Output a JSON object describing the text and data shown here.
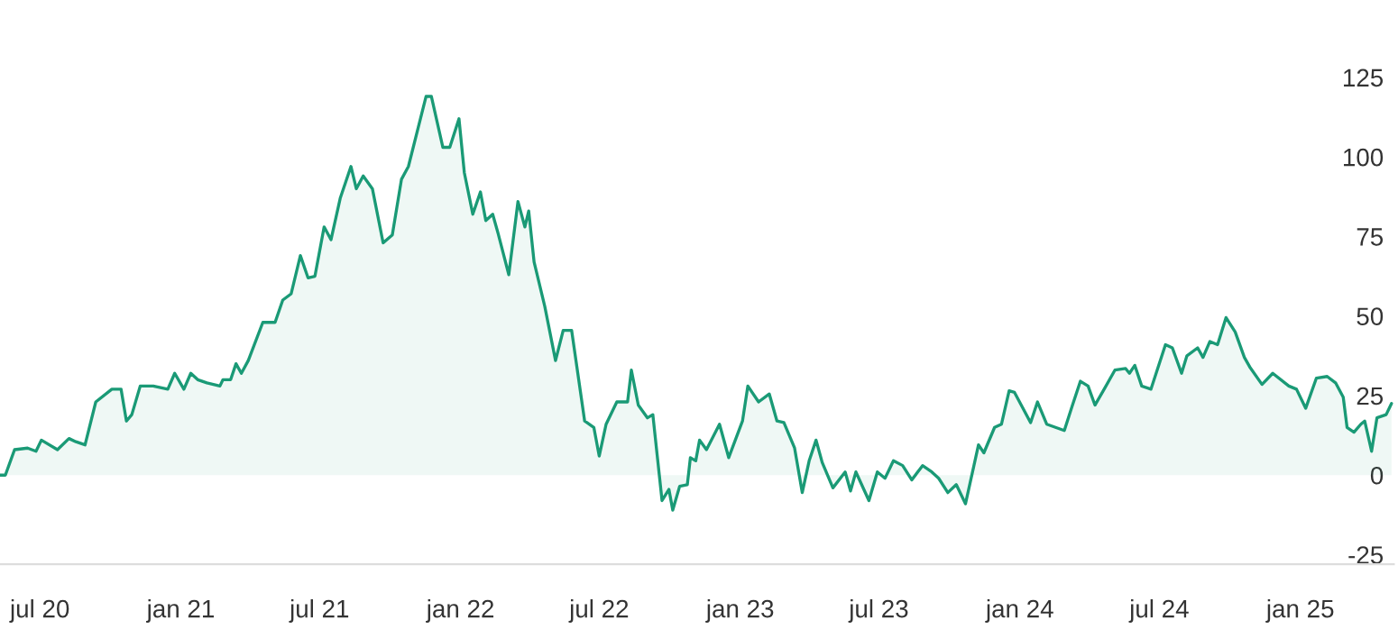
{
  "chart_data": {
    "type": "area",
    "color": "#1a9a76",
    "grid": false,
    "legend": false,
    "x": [
      "2020-05-10",
      "2020-05-17",
      "2020-05-29",
      "2020-06-15",
      "2020-06-26",
      "2020-07-03",
      "2020-07-24",
      "2020-08-08",
      "2020-08-17",
      "2020-08-29",
      "2020-09-12",
      "2020-10-03",
      "2020-10-15",
      "2020-10-22",
      "2020-10-29",
      "2020-11-09",
      "2020-11-26",
      "2020-12-15",
      "2020-12-24",
      "2021-01-05",
      "2021-01-14",
      "2021-01-23",
      "2021-02-04",
      "2021-02-21",
      "2021-02-25",
      "2021-03-07",
      "2021-03-14",
      "2021-03-21",
      "2021-03-30",
      "2021-04-18",
      "2021-05-04",
      "2021-05-14",
      "2021-05-25",
      "2021-06-06",
      "2021-06-16",
      "2021-06-25",
      "2021-07-07",
      "2021-07-16",
      "2021-07-28",
      "2021-08-11",
      "2021-08-18",
      "2021-08-27",
      "2021-09-08",
      "2021-09-22",
      "2021-10-04",
      "2021-10-16",
      "2021-10-25",
      "2021-11-17",
      "2021-11-24",
      "2021-12-09",
      "2021-12-18",
      "2021-12-30",
      "2022-01-06",
      "2022-01-17",
      "2022-01-27",
      "2022-02-03",
      "2022-02-12",
      "2022-02-19",
      "2022-03-05",
      "2022-03-17",
      "2022-03-26",
      "2022-03-31",
      "2022-04-07",
      "2022-04-21",
      "2022-05-05",
      "2022-05-15",
      "2022-05-26",
      "2022-06-12",
      "2022-06-24",
      "2022-07-01",
      "2022-07-10",
      "2022-07-24",
      "2022-08-07",
      "2022-08-12",
      "2022-08-21",
      "2022-09-02",
      "2022-09-09",
      "2022-09-21",
      "2022-09-30",
      "2022-10-05",
      "2022-10-14",
      "2022-10-24",
      "2022-10-28",
      "2022-11-04",
      "2022-11-09",
      "2022-11-18",
      "2022-12-05",
      "2022-12-17",
      "2023-01-04",
      "2023-01-11",
      "2023-01-25",
      "2023-02-08",
      "2023-02-18",
      "2023-02-27",
      "2023-03-13",
      "2023-03-23",
      "2023-04-01",
      "2023-04-10",
      "2023-04-18",
      "2023-05-02",
      "2023-05-18",
      "2023-05-25",
      "2023-06-01",
      "2023-06-18",
      "2023-06-29",
      "2023-07-09",
      "2023-07-20",
      "2023-08-01",
      "2023-08-13",
      "2023-08-27",
      "2023-09-08",
      "2023-09-17",
      "2023-09-29",
      "2023-10-10",
      "2023-10-22",
      "2023-11-08",
      "2023-11-15",
      "2023-11-29",
      "2023-12-08",
      "2023-12-18",
      "2023-12-25",
      "2024-01-15",
      "2024-01-24",
      "2024-02-05",
      "2024-02-28",
      "2024-03-09",
      "2024-03-20",
      "2024-03-30",
      "2024-04-08",
      "2024-04-20",
      "2024-05-04",
      "2024-05-18",
      "2024-05-23",
      "2024-05-30",
      "2024-06-08",
      "2024-06-20",
      "2024-07-09",
      "2024-07-18",
      "2024-07-30",
      "2024-08-06",
      "2024-08-20",
      "2024-08-27",
      "2024-09-05",
      "2024-09-15",
      "2024-09-26",
      "2024-10-08",
      "2024-10-20",
      "2024-10-27",
      "2024-11-12",
      "2024-11-26",
      "2024-12-17",
      "2024-12-27",
      "2025-01-08",
      "2025-01-22",
      "2025-02-05",
      "2025-02-16",
      "2025-02-26",
      "2025-03-03",
      "2025-03-12",
      "2025-03-21",
      "2025-03-26",
      "2025-04-04",
      "2025-04-11",
      "2025-04-23",
      "2025-04-30"
    ],
    "values": [
      0,
      0,
      8,
      8.5,
      7.5,
      11,
      8,
      11.5,
      10.5,
      9.5,
      23,
      27,
      27,
      17,
      19,
      28,
      28,
      27,
      32,
      27,
      32,
      30,
      29,
      28,
      30,
      30,
      35,
      32,
      36,
      48,
      48,
      55,
      57,
      69,
      62,
      62.5,
      78,
      74,
      87,
      97,
      90,
      94,
      90,
      73,
      75.5,
      93,
      97,
      119,
      119,
      103,
      103,
      112,
      95,
      82,
      89,
      80,
      82,
      76,
      63,
      86,
      78,
      83,
      67,
      53,
      36,
      45.5,
      45.5,
      17,
      15,
      6,
      16,
      23,
      23,
      33,
      22,
      18,
      19,
      -8,
      -4.5,
      -11,
      -3.5,
      -3,
      5.5,
      4.5,
      11,
      8,
      16,
      5.5,
      17,
      28,
      23,
      25.5,
      17,
      16.5,
      8.5,
      -5.5,
      4.5,
      11,
      4,
      -4,
      1,
      -5,
      1,
      -8,
      1,
      -1,
      4.5,
      3,
      -1.5,
      3,
      1,
      -1,
      -5.5,
      -3,
      -9,
      9.5,
      7,
      15,
      16,
      26.5,
      26,
      16.5,
      23,
      16,
      14,
      21.5,
      29.5,
      28,
      22,
      27,
      33,
      33.5,
      32,
      34.5,
      28,
      27,
      41,
      40,
      32,
      37.5,
      40,
      37,
      42,
      41,
      49.5,
      45,
      37,
      34,
      28.5,
      32,
      28,
      27,
      21,
      30.5,
      31,
      29,
      24.5,
      15,
      13.5,
      16,
      17,
      7.5,
      18,
      19,
      22.5
    ],
    "xlim": [
      "2020-05-10",
      "2025-05-03"
    ],
    "xticks": [
      {
        "value": "2020-07-01",
        "label": "jul 20"
      },
      {
        "value": "2021-01-01",
        "label": "jan 21"
      },
      {
        "value": "2021-07-01",
        "label": "jul 21"
      },
      {
        "value": "2022-01-01",
        "label": "jan 22"
      },
      {
        "value": "2022-07-01",
        "label": "jul 22"
      },
      {
        "value": "2023-01-01",
        "label": "jan 23"
      },
      {
        "value": "2023-07-01",
        "label": "jul 23"
      },
      {
        "value": "2024-01-01",
        "label": "jan 24"
      },
      {
        "value": "2024-07-01",
        "label": "jul 24"
      },
      {
        "value": "2025-01-01",
        "label": "jan 25"
      }
    ],
    "ylim": [
      -28,
      125
    ],
    "yticks": [
      -25,
      0,
      25,
      50,
      75,
      100,
      125
    ]
  }
}
